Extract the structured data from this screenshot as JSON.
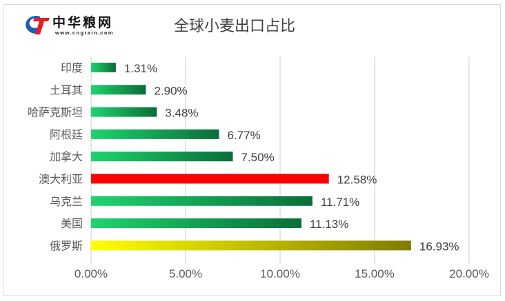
{
  "logo": {
    "name": "中华粮网",
    "url": "www.cngrain.com"
  },
  "chart_data": {
    "type": "bar",
    "orientation": "horizontal",
    "title": "全球小麦出口占比",
    "categories": [
      "印度",
      "土耳其",
      "哈萨克斯坦",
      "阿根廷",
      "加拿大",
      "澳大利亚",
      "乌克兰",
      "美国",
      "俄罗斯"
    ],
    "values": [
      1.31,
      2.9,
      3.48,
      6.77,
      7.5,
      12.58,
      11.71,
      11.13,
      16.93
    ],
    "data_labels": [
      "1.31%",
      "2.90%",
      "3.48%",
      "6.77%",
      "7.50%",
      "12.58%",
      "11.71%",
      "11.13%",
      "16.93%"
    ],
    "xlim": [
      0,
      20
    ],
    "xticks": [
      "0.00%",
      "5.00%",
      "10.00%",
      "15.00%",
      "20.00%"
    ],
    "grid": "vertical",
    "legend": "none",
    "colors": {
      "default": [
        "#1ed36e",
        "#0a6e37"
      ],
      "澳大利亚": [
        "#ff0000",
        "#ff0000"
      ],
      "俄罗斯": [
        "#ffff00",
        "#807c00"
      ]
    }
  }
}
